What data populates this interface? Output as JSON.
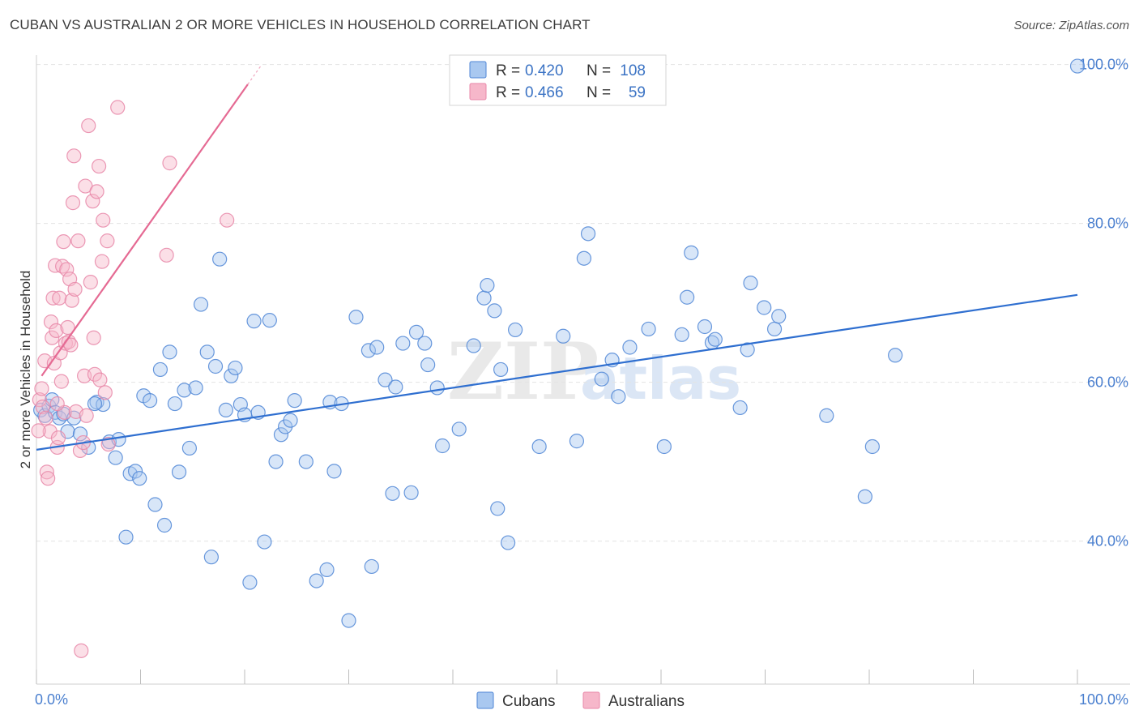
{
  "header": {
    "title": "CUBAN VS AUSTRALIAN 2 OR MORE VEHICLES IN HOUSEHOLD CORRELATION CHART",
    "source": "Source: ZipAtlas.com"
  },
  "watermark": {
    "zip": "ZIP",
    "atlas": "atlas"
  },
  "legend": {
    "rows": [
      {
        "r_label": "R =",
        "r_value": "0.420",
        "n_label": "N =",
        "n_value": "108"
      },
      {
        "r_label": "R =",
        "r_value": "0.466",
        "n_label": "N =",
        "n_value": "59"
      }
    ]
  },
  "bottom_legend": {
    "items": [
      "Cubans",
      "Australians"
    ]
  },
  "colors": {
    "cubans_fill": "#a9c8f0",
    "cubans_stroke": "#4f86d6",
    "cubans_line": "#2f6fd0",
    "australians_fill": "#f6b7ca",
    "australians_stroke": "#e887a8",
    "australians_line": "#e56a93",
    "tick_text": "#4a7fcf",
    "grid": "#e3e3e3"
  },
  "chart_data": {
    "type": "scatter",
    "title": "CUBAN VS AUSTRALIAN 2 OR MORE VEHICLES IN HOUSEHOLD CORRELATION CHART",
    "xlabel": "",
    "ylabel": "2 or more Vehicles in Household",
    "xlim": [
      0,
      100
    ],
    "ylim": [
      22,
      102
    ],
    "x_tick_labels": [
      "0.0%",
      "100.0%"
    ],
    "y_ticks": [
      40,
      60,
      80,
      100
    ],
    "y_tick_labels": [
      "40.0%",
      "60.0%",
      "80.0%",
      "100.0%"
    ],
    "grid": true,
    "legend_position": "top-center",
    "series": [
      {
        "name": "Cubans",
        "r": 0.42,
        "n": 108,
        "trend": {
          "x": [
            0,
            100
          ],
          "y": [
            51.5,
            71.0
          ]
        },
        "points": [
          [
            0.4,
            56.5
          ],
          [
            0.8,
            55.8
          ],
          [
            1.2,
            57.0
          ],
          [
            1.5,
            57.8
          ],
          [
            1.8,
            56.2
          ],
          [
            2.2,
            55.5
          ],
          [
            2.6,
            56.0
          ],
          [
            3.0,
            53.8
          ],
          [
            3.6,
            55.5
          ],
          [
            4.2,
            53.5
          ],
          [
            5.0,
            51.8
          ],
          [
            5.8,
            57.5
          ],
          [
            6.4,
            57.2
          ],
          [
            7.0,
            52.5
          ],
          [
            7.6,
            50.5
          ],
          [
            7.9,
            52.8
          ],
          [
            8.6,
            40.5
          ],
          [
            9.0,
            48.5
          ],
          [
            9.5,
            48.8
          ],
          [
            9.9,
            47.9
          ],
          [
            10.3,
            58.3
          ],
          [
            10.9,
            57.7
          ],
          [
            11.4,
            44.6
          ],
          [
            11.9,
            61.6
          ],
          [
            12.3,
            42.0
          ],
          [
            12.8,
            63.8
          ],
          [
            13.3,
            57.3
          ],
          [
            13.7,
            48.7
          ],
          [
            14.2,
            59.0
          ],
          [
            14.7,
            51.7
          ],
          [
            15.3,
            59.3
          ],
          [
            15.8,
            69.8
          ],
          [
            16.4,
            63.8
          ],
          [
            16.8,
            38.0
          ],
          [
            17.2,
            62.0
          ],
          [
            17.6,
            75.5
          ],
          [
            18.2,
            56.5
          ],
          [
            18.7,
            60.8
          ],
          [
            19.1,
            61.8
          ],
          [
            19.6,
            57.2
          ],
          [
            20.0,
            55.9
          ],
          [
            20.5,
            34.8
          ],
          [
            20.9,
            67.7
          ],
          [
            21.3,
            56.2
          ],
          [
            21.9,
            39.9
          ],
          [
            22.4,
            67.8
          ],
          [
            23.0,
            50.0
          ],
          [
            23.5,
            53.4
          ],
          [
            23.9,
            54.4
          ],
          [
            24.4,
            55.2
          ],
          [
            24.8,
            57.7
          ],
          [
            25.9,
            50.0
          ],
          [
            26.9,
            35.0
          ],
          [
            27.9,
            36.4
          ],
          [
            28.2,
            57.5
          ],
          [
            28.6,
            48.8
          ],
          [
            29.3,
            57.3
          ],
          [
            30.0,
            30.0
          ],
          [
            30.7,
            68.2
          ],
          [
            31.9,
            64.0
          ],
          [
            32.2,
            36.8
          ],
          [
            32.7,
            64.4
          ],
          [
            33.5,
            60.3
          ],
          [
            34.2,
            46.0
          ],
          [
            34.5,
            59.4
          ],
          [
            35.2,
            64.9
          ],
          [
            36.0,
            46.1
          ],
          [
            36.5,
            66.3
          ],
          [
            37.3,
            64.9
          ],
          [
            37.6,
            62.2
          ],
          [
            38.5,
            59.3
          ],
          [
            39.0,
            52.0
          ],
          [
            40.6,
            54.1
          ],
          [
            42.0,
            64.6
          ],
          [
            43.0,
            70.6
          ],
          [
            43.3,
            72.2
          ],
          [
            44.0,
            69.0
          ],
          [
            44.3,
            44.1
          ],
          [
            44.6,
            61.6
          ],
          [
            45.3,
            39.8
          ],
          [
            46.0,
            66.6
          ],
          [
            48.3,
            51.9
          ],
          [
            50.6,
            65.8
          ],
          [
            51.9,
            52.6
          ],
          [
            52.6,
            75.6
          ],
          [
            53.0,
            78.7
          ],
          [
            54.3,
            60.4
          ],
          [
            55.3,
            62.8
          ],
          [
            55.9,
            58.2
          ],
          [
            57.0,
            64.4
          ],
          [
            58.8,
            66.7
          ],
          [
            60.3,
            51.9
          ],
          [
            62.0,
            66.0
          ],
          [
            62.5,
            70.7
          ],
          [
            62.9,
            76.3
          ],
          [
            64.2,
            67.0
          ],
          [
            64.9,
            65.0
          ],
          [
            65.2,
            65.4
          ],
          [
            67.6,
            56.8
          ],
          [
            68.3,
            64.1
          ],
          [
            68.6,
            72.5
          ],
          [
            69.9,
            69.4
          ],
          [
            70.9,
            66.7
          ],
          [
            71.3,
            68.3
          ],
          [
            75.9,
            55.8
          ],
          [
            79.6,
            45.6
          ],
          [
            80.3,
            51.9
          ],
          [
            82.5,
            63.4
          ],
          [
            100.0,
            99.8
          ],
          [
            5.6,
            57.3
          ]
        ]
      },
      {
        "name": "Australians",
        "r": 0.466,
        "n": 59,
        "trend": {
          "x": [
            0.5,
            20.3
          ],
          "y": [
            60.8,
            97.5
          ]
        },
        "points": [
          [
            0.3,
            57.8
          ],
          [
            0.5,
            59.2
          ],
          [
            0.6,
            56.9
          ],
          [
            0.8,
            62.7
          ],
          [
            0.9,
            55.5
          ],
          [
            1.0,
            48.7
          ],
          [
            1.1,
            47.9
          ],
          [
            1.3,
            53.8
          ],
          [
            1.4,
            67.6
          ],
          [
            1.5,
            65.6
          ],
          [
            1.6,
            70.6
          ],
          [
            1.7,
            62.4
          ],
          [
            1.8,
            74.7
          ],
          [
            1.9,
            66.5
          ],
          [
            2.0,
            51.8
          ],
          [
            2.1,
            53.0
          ],
          [
            2.2,
            70.6
          ],
          [
            2.3,
            63.7
          ],
          [
            2.4,
            60.1
          ],
          [
            2.5,
            74.6
          ],
          [
            2.6,
            77.7
          ],
          [
            2.7,
            56.2
          ],
          [
            2.8,
            64.9
          ],
          [
            2.9,
            74.2
          ],
          [
            3.0,
            66.9
          ],
          [
            3.1,
            65.1
          ],
          [
            3.2,
            73.0
          ],
          [
            3.3,
            64.7
          ],
          [
            3.4,
            70.3
          ],
          [
            3.5,
            82.6
          ],
          [
            3.6,
            88.5
          ],
          [
            3.7,
            71.7
          ],
          [
            3.8,
            56.3
          ],
          [
            4.0,
            77.8
          ],
          [
            4.2,
            51.4
          ],
          [
            4.3,
            26.2
          ],
          [
            4.5,
            52.4
          ],
          [
            4.6,
            60.8
          ],
          [
            4.7,
            84.7
          ],
          [
            4.8,
            55.8
          ],
          [
            5.0,
            92.3
          ],
          [
            5.2,
            72.6
          ],
          [
            5.4,
            82.8
          ],
          [
            5.5,
            65.6
          ],
          [
            5.6,
            61.0
          ],
          [
            5.8,
            84.0
          ],
          [
            6.0,
            87.2
          ],
          [
            6.1,
            60.3
          ],
          [
            6.3,
            75.2
          ],
          [
            6.4,
            80.4
          ],
          [
            6.6,
            58.7
          ],
          [
            6.8,
            77.8
          ],
          [
            7.8,
            94.6
          ],
          [
            12.5,
            76.0
          ],
          [
            12.8,
            87.6
          ],
          [
            18.3,
            80.4
          ],
          [
            6.9,
            52.2
          ],
          [
            2.0,
            57.3
          ],
          [
            0.2,
            53.9
          ]
        ]
      }
    ]
  }
}
